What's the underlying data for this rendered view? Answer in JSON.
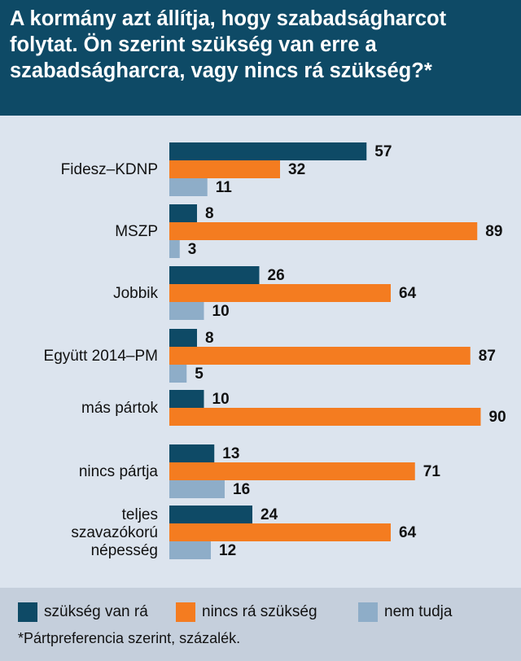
{
  "title": "A kormány azt állítja, hogy szabadságharcot folytat. Ön szerint szükség van erre a szabadságharcra, vagy nincs rá szükség?*",
  "chart_data": {
    "type": "bar",
    "orientation": "horizontal",
    "categories": [
      "Fidesz–KDNP",
      "MSZP",
      "Jobbik",
      "Együtt 2014–PM",
      "más pártok",
      "nincs pártja",
      "teljes szavazókorú népesség"
    ],
    "series": [
      {
        "name": "szükség van rá",
        "color": "#0e4a66",
        "values": [
          57,
          8,
          26,
          8,
          10,
          13,
          24
        ]
      },
      {
        "name": "nincs rá szükség",
        "color": "#f47c20",
        "values": [
          32,
          89,
          64,
          87,
          90,
          71,
          64
        ]
      },
      {
        "name": "nem tudja",
        "color": "#8eadc8",
        "values": [
          11,
          3,
          10,
          5,
          null,
          16,
          12
        ]
      }
    ],
    "xlim": [
      0,
      100
    ],
    "grid": false,
    "legend": "bottom",
    "footnote": "*Pártpreferencia szerint, százalék."
  }
}
